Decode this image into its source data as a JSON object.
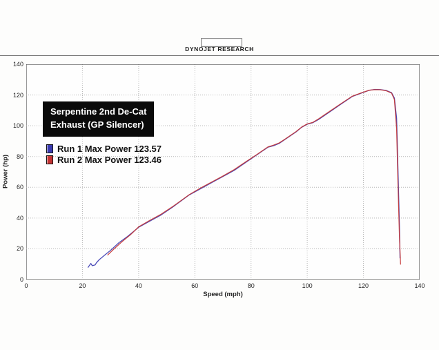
{
  "header": {
    "title": "DYNOJET RESEARCH"
  },
  "annotation": {
    "line1": "Serpentine 2nd De-Cat",
    "line2": "Exhaust (GP Silencer)"
  },
  "chart_data": {
    "type": "line",
    "title": "",
    "xlabel": "Speed (mph)",
    "ylabel": "Power (hp)",
    "xlim": [
      0,
      140
    ],
    "ylim": [
      0,
      140
    ],
    "xticks": [
      0,
      20,
      40,
      60,
      80,
      100,
      120,
      140
    ],
    "yticks": [
      0,
      20,
      40,
      60,
      80,
      100,
      120,
      140
    ],
    "grid": true,
    "legend_position": "upper-left",
    "legend": [
      {
        "label": "Run 1 Max Power 123.57",
        "color": "#3a3ab0"
      },
      {
        "label": "Run 2 Max Power 123.46",
        "color": "#c43333"
      }
    ],
    "series": [
      {
        "name": "Run 1",
        "max_power": 123.57,
        "color": "#3a3ab0",
        "points": [
          [
            22,
            8
          ],
          [
            23,
            10.5
          ],
          [
            23.5,
            9
          ],
          [
            24.5,
            9.5
          ],
          [
            25,
            11
          ],
          [
            26,
            13
          ],
          [
            27,
            14.5
          ],
          [
            28,
            16
          ],
          [
            30,
            19
          ],
          [
            33,
            24
          ],
          [
            36,
            28
          ],
          [
            40,
            34
          ],
          [
            44,
            38
          ],
          [
            48,
            42
          ],
          [
            52,
            47
          ],
          [
            55,
            51
          ],
          [
            58,
            55
          ],
          [
            62,
            59
          ],
          [
            66,
            63
          ],
          [
            70,
            67
          ],
          [
            74,
            71
          ],
          [
            78,
            76
          ],
          [
            82,
            81
          ],
          [
            86,
            86
          ],
          [
            88,
            87
          ],
          [
            90,
            88.5
          ],
          [
            92,
            91
          ],
          [
            96,
            96
          ],
          [
            98,
            99
          ],
          [
            100,
            101
          ],
          [
            102,
            102
          ],
          [
            104,
            104
          ],
          [
            108,
            109
          ],
          [
            112,
            114
          ],
          [
            116,
            119
          ],
          [
            119,
            121
          ],
          [
            122,
            123
          ],
          [
            124,
            123.6
          ],
          [
            126,
            123.5
          ],
          [
            128,
            123
          ],
          [
            130,
            121.5
          ],
          [
            131,
            118
          ],
          [
            131.8,
            105
          ],
          [
            132.3,
            70
          ],
          [
            132.8,
            35
          ],
          [
            133,
            14
          ]
        ]
      },
      {
        "name": "Run 2",
        "max_power": 123.46,
        "color": "#c43333",
        "points": [
          [
            29,
            16
          ],
          [
            31,
            19.5
          ],
          [
            34,
            24.5
          ],
          [
            37,
            29
          ],
          [
            40,
            34.3
          ],
          [
            44,
            38.5
          ],
          [
            48,
            42.5
          ],
          [
            52,
            47.3
          ],
          [
            55,
            51.2
          ],
          [
            58,
            55.2
          ],
          [
            62,
            59.5
          ],
          [
            66,
            63.4
          ],
          [
            70,
            67.3
          ],
          [
            74,
            71.5
          ],
          [
            78,
            76.4
          ],
          [
            82,
            81.2
          ],
          [
            86,
            86.2
          ],
          [
            88,
            87.4
          ],
          [
            90,
            88.8
          ],
          [
            92,
            91.2
          ],
          [
            96,
            96.2
          ],
          [
            98,
            99.1
          ],
          [
            100,
            101.2
          ],
          [
            102,
            102.2
          ],
          [
            104,
            104.4
          ],
          [
            108,
            109.4
          ],
          [
            112,
            114.4
          ],
          [
            116,
            119.2
          ],
          [
            119,
            121.2
          ],
          [
            122,
            123.1
          ],
          [
            124,
            123.46
          ],
          [
            126,
            123.4
          ],
          [
            128,
            122.8
          ],
          [
            130,
            121.2
          ],
          [
            131,
            117
          ],
          [
            131.8,
            98
          ],
          [
            132.3,
            60
          ],
          [
            132.8,
            28
          ],
          [
            133.2,
            10
          ]
        ]
      }
    ]
  }
}
